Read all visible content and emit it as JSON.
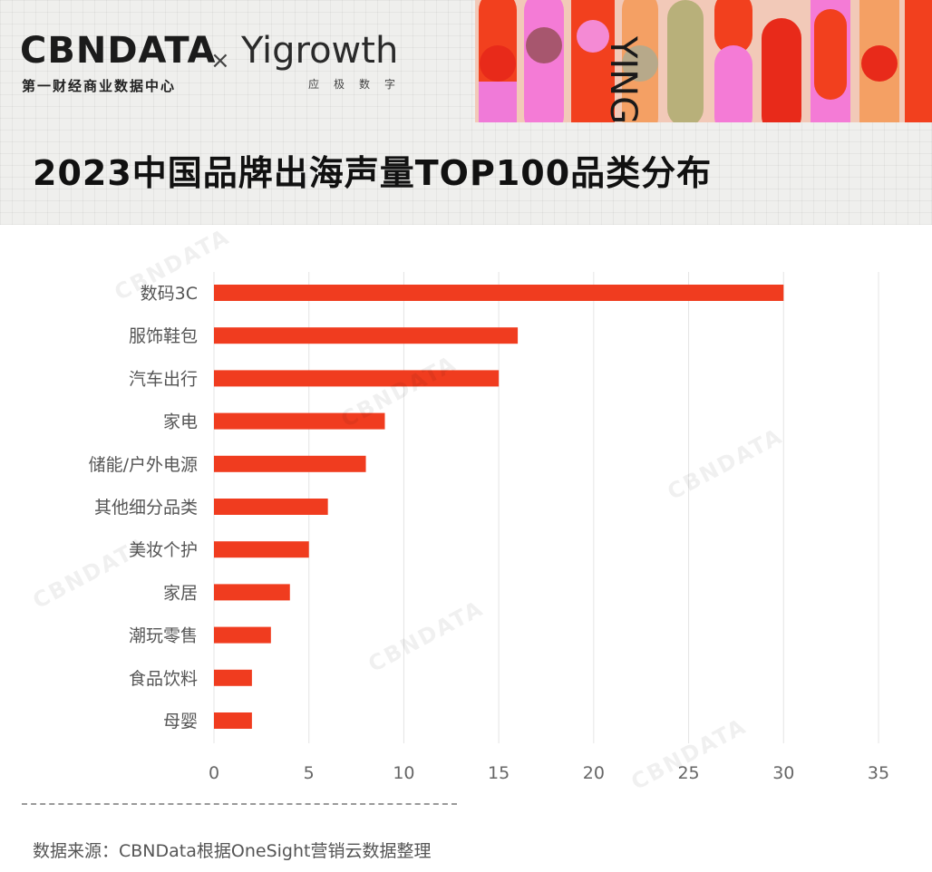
{
  "header": {
    "logo_cbn": "CBNDATA",
    "logo_cbn_sub": "第一财经商业数据中心",
    "logo_x": "×",
    "logo_yi": "Yigrowth",
    "logo_yi_sub": "应极数字",
    "deco_text": "YING"
  },
  "colors": {
    "bar": "#f03c1f",
    "grid": "#e4e4e4",
    "label": "#555555",
    "tick": "#666666"
  },
  "chart_data": {
    "type": "bar",
    "orientation": "horizontal",
    "title": "2023中国品牌出海声量TOP100品类分布",
    "categories": [
      "数码3C",
      "服饰鞋包",
      "汽车出行",
      "家电",
      "储能/户外电源",
      "其他细分品类",
      "美妆个护",
      "家居",
      "潮玩零售",
      "食品饮料",
      "母婴"
    ],
    "values": [
      30,
      16,
      15,
      9,
      8,
      6,
      5,
      4,
      3,
      2,
      2
    ],
    "xlim": [
      0,
      35
    ],
    "xticks": [
      "0",
      "5",
      "10",
      "15",
      "20",
      "25",
      "30",
      "35"
    ],
    "grid": true
  },
  "footer": {
    "source": "数据来源：CBNData根据OneSight营销云数据整理"
  },
  "watermarks": [
    "CBNDATA",
    "CBNDATA",
    "CBNDATA",
    "CBNDATA",
    "CBNDATA"
  ]
}
